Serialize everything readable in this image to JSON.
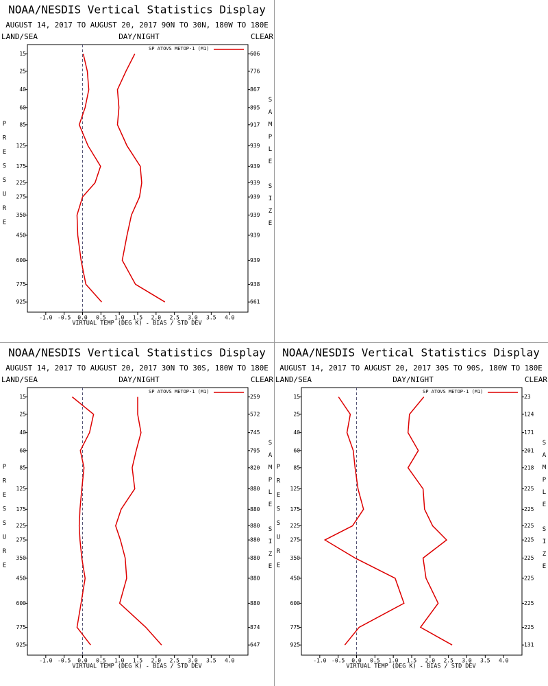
{
  "chart_data": [
    {
      "type": "line",
      "title": "NOAA/NESDIS Vertical Statistics Display",
      "subtitle": "AUGUST 14, 2017 TO AUGUST 20, 2017 90N TO 30N, 180W TO 180E",
      "left_header": "LAND/SEA",
      "center_header": "DAY/NIGHT",
      "right_header": "CLEAR",
      "y_label": "PRESSURE",
      "y2_label": "SAMPLE SIZE",
      "x_label": "VIRTUAL TEMP (DEG K) - BIAS / STD DEV",
      "y": [
        15,
        25,
        40,
        60,
        85,
        125,
        175,
        225,
        275,
        350,
        450,
        600,
        775,
        925
      ],
      "right_labels": [
        606,
        776,
        867,
        895,
        917,
        939,
        939,
        939,
        939,
        939,
        939,
        939,
        938,
        661
      ],
      "ylim": [
        11,
        1020
      ],
      "y_scale_exponent": 0.286,
      "xlim": [
        -1.5,
        4.5
      ],
      "xticks": [
        {
          "value": -1,
          "label": "-1.0"
        },
        -0.5,
        {
          "value": 0,
          "label": "0.0"
        },
        0.5,
        {
          "value": 1,
          "label": "1.0"
        },
        1.5,
        {
          "value": 2,
          "label": "2.0"
        },
        2.5,
        {
          "value": 3,
          "label": "3.0"
        },
        3.5,
        {
          "value": 4,
          "label": "4.0"
        }
      ],
      "series": [
        {
          "name": "SP ATOVS METOP-1 (M1)",
          "color": "#dd0000",
          "values": [
            0.02,
            0.13,
            0.17,
            0.07,
            -0.09,
            0.15,
            0.49,
            0.34,
            0.0,
            -0.15,
            -0.13,
            -0.04,
            0.09,
            0.52
          ]
        },
        {
          "color": "#dd0000",
          "values": [
            1.42,
            1.18,
            0.95,
            0.99,
            0.95,
            1.21,
            1.57,
            1.61,
            1.55,
            1.33,
            1.21,
            1.08,
            1.44,
            2.24
          ]
        }
      ]
    },
    {
      "type": "line",
      "title": "NOAA/NESDIS Vertical Statistics Display",
      "subtitle": "AUGUST 14, 2017 TO AUGUST 20, 2017 30N TO 30S, 180W TO 180E",
      "left_header": "LAND/SEA",
      "center_header": "DAY/NIGHT",
      "right_header": "CLEAR",
      "y_label": "PRESSURE",
      "y2_label": "SAMPLE SIZE",
      "x_label": "VIRTUAL TEMP (DEG K) - BIAS / STD DEV",
      "y": [
        15,
        25,
        40,
        60,
        85,
        125,
        175,
        225,
        275,
        350,
        450,
        600,
        775,
        925
      ],
      "right_labels": [
        259,
        572,
        745,
        795,
        820,
        880,
        880,
        880,
        880,
        880,
        880,
        880,
        874,
        647
      ],
      "ylim": [
        11,
        1020
      ],
      "y_scale_exponent": 0.286,
      "xlim": [
        -1.5,
        4.5
      ],
      "xticks": [
        {
          "value": -1,
          "label": "-1.0"
        },
        -0.5,
        {
          "value": 0,
          "label": "0.0"
        },
        0.5,
        {
          "value": 1,
          "label": "1.0"
        },
        1.5,
        {
          "value": 2,
          "label": "2.0"
        },
        2.5,
        {
          "value": 3,
          "label": "3.0"
        },
        3.5,
        {
          "value": 4,
          "label": "4.0"
        }
      ],
      "series": [
        {
          "name": "SP ATOVS METOP-1 (M1)",
          "color": "#dd0000",
          "values": [
            -0.28,
            0.3,
            0.19,
            -0.06,
            0.04,
            -0.02,
            -0.07,
            -0.09,
            -0.07,
            -0.02,
            0.07,
            -0.04,
            -0.15,
            0.22
          ]
        },
        {
          "color": "#dd0000",
          "values": [
            1.5,
            1.5,
            1.59,
            1.46,
            1.35,
            1.42,
            1.05,
            0.9,
            1.03,
            1.16,
            1.2,
            1.01,
            1.72,
            2.15
          ]
        }
      ]
    },
    {
      "type": "line",
      "title": "NOAA/NESDIS Vertical Statistics Display",
      "subtitle": "AUGUST 14, 2017 TO AUGUST 20, 2017 30S TO 90S, 180W TO 180E",
      "left_header": "LAND/SEA",
      "center_header": "DAY/NIGHT",
      "right_header": "CLEAR",
      "y_label": "PRESSURE",
      "y2_label": "SAMPLE SIZE",
      "x_label": "VIRTUAL TEMP (DEG K) - BIAS / STD DEV",
      "y": [
        15,
        25,
        40,
        60,
        85,
        125,
        175,
        225,
        275,
        350,
        450,
        600,
        775,
        925
      ],
      "right_labels": [
        23,
        124,
        171,
        201,
        218,
        225,
        225,
        225,
        225,
        225,
        225,
        225,
        225,
        131
      ],
      "ylim": [
        11,
        1020
      ],
      "y_scale_exponent": 0.286,
      "xlim": [
        -1.5,
        4.5
      ],
      "xticks": [
        {
          "value": -1,
          "label": "-1.0"
        },
        -0.5,
        {
          "value": 0,
          "label": "0.0"
        },
        0.5,
        {
          "value": 1,
          "label": "1.0"
        },
        1.5,
        {
          "value": 2,
          "label": "2.0"
        },
        2.5,
        {
          "value": 3,
          "label": "3.0"
        },
        3.5,
        {
          "value": 4,
          "label": "4.0"
        }
      ],
      "series": [
        {
          "name": "SP ATOVS METOP-1 (M1)",
          "color": "#dd0000",
          "values": [
            -0.49,
            -0.17,
            -0.26,
            -0.09,
            -0.04,
            0.04,
            0.19,
            -0.11,
            -0.86,
            -0.04,
            1.05,
            1.29,
            0.07,
            -0.32
          ]
        },
        {
          "color": "#dd0000",
          "values": [
            1.83,
            1.44,
            1.4,
            1.68,
            1.4,
            1.81,
            1.85,
            2.07,
            2.45,
            1.81,
            1.89,
            2.22,
            1.74,
            2.6
          ]
        }
      ]
    }
  ]
}
